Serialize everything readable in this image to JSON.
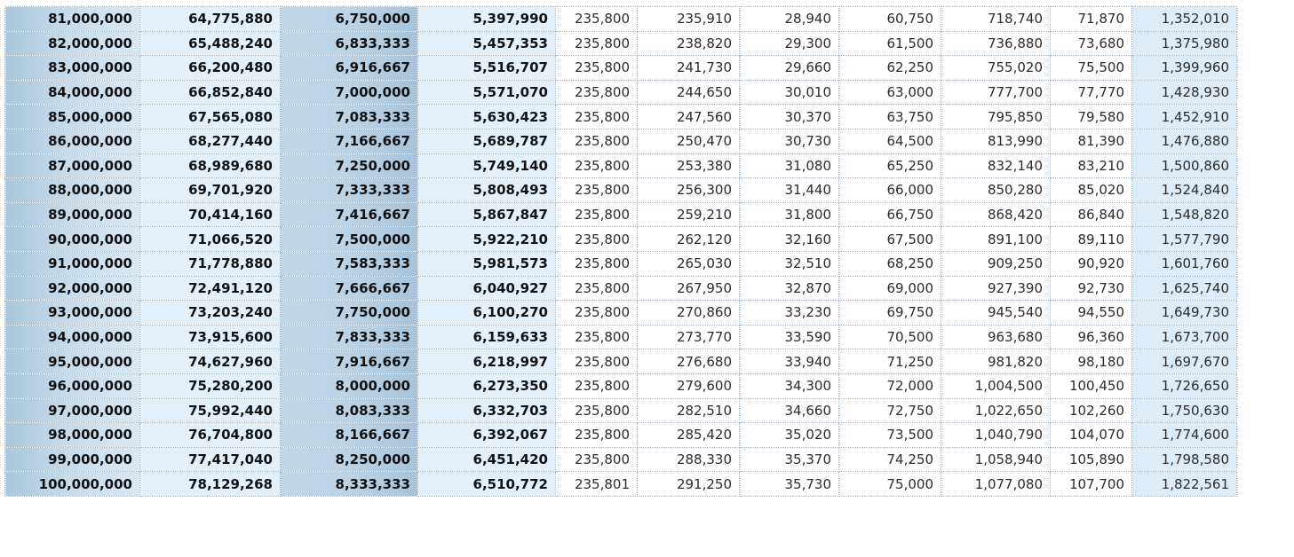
{
  "table": {
    "rows": [
      [
        "81,000,000",
        "64,775,880",
        "6,750,000",
        "5,397,990",
        "235,800",
        "235,910",
        "28,940",
        "60,750",
        "718,740",
        "71,870",
        "1,352,010"
      ],
      [
        "82,000,000",
        "65,488,240",
        "6,833,333",
        "5,457,353",
        "235,800",
        "238,820",
        "29,300",
        "61,500",
        "736,880",
        "73,680",
        "1,375,980"
      ],
      [
        "83,000,000",
        "66,200,480",
        "6,916,667",
        "5,516,707",
        "235,800",
        "241,730",
        "29,660",
        "62,250",
        "755,020",
        "75,500",
        "1,399,960"
      ],
      [
        "84,000,000",
        "66,852,840",
        "7,000,000",
        "5,571,070",
        "235,800",
        "244,650",
        "30,010",
        "63,000",
        "777,700",
        "77,770",
        "1,428,930"
      ],
      [
        "85,000,000",
        "67,565,080",
        "7,083,333",
        "5,630,423",
        "235,800",
        "247,560",
        "30,370",
        "63,750",
        "795,850",
        "79,580",
        "1,452,910"
      ],
      [
        "86,000,000",
        "68,277,440",
        "7,166,667",
        "5,689,787",
        "235,800",
        "250,470",
        "30,730",
        "64,500",
        "813,990",
        "81,390",
        "1,476,880"
      ],
      [
        "87,000,000",
        "68,989,680",
        "7,250,000",
        "5,749,140",
        "235,800",
        "253,380",
        "31,080",
        "65,250",
        "832,140",
        "83,210",
        "1,500,860"
      ],
      [
        "88,000,000",
        "69,701,920",
        "7,333,333",
        "5,808,493",
        "235,800",
        "256,300",
        "31,440",
        "66,000",
        "850,280",
        "85,020",
        "1,524,840"
      ],
      [
        "89,000,000",
        "70,414,160",
        "7,416,667",
        "5,867,847",
        "235,800",
        "259,210",
        "31,800",
        "66,750",
        "868,420",
        "86,840",
        "1,548,820"
      ],
      [
        "90,000,000",
        "71,066,520",
        "7,500,000",
        "5,922,210",
        "235,800",
        "262,120",
        "32,160",
        "67,500",
        "891,100",
        "89,110",
        "1,577,790"
      ],
      [
        "91,000,000",
        "71,778,880",
        "7,583,333",
        "5,981,573",
        "235,800",
        "265,030",
        "32,510",
        "68,250",
        "909,250",
        "90,920",
        "1,601,760"
      ],
      [
        "92,000,000",
        "72,491,120",
        "7,666,667",
        "6,040,927",
        "235,800",
        "267,950",
        "32,870",
        "69,000",
        "927,390",
        "92,730",
        "1,625,740"
      ],
      [
        "93,000,000",
        "73,203,240",
        "7,750,000",
        "6,100,270",
        "235,800",
        "270,860",
        "33,230",
        "69,750",
        "945,540",
        "94,550",
        "1,649,730"
      ],
      [
        "94,000,000",
        "73,915,600",
        "7,833,333",
        "6,159,633",
        "235,800",
        "273,770",
        "33,590",
        "70,500",
        "963,680",
        "96,360",
        "1,673,700"
      ],
      [
        "95,000,000",
        "74,627,960",
        "7,916,667",
        "6,218,997",
        "235,800",
        "276,680",
        "33,940",
        "71,250",
        "981,820",
        "98,180",
        "1,697,670"
      ],
      [
        "96,000,000",
        "75,280,200",
        "8,000,000",
        "6,273,350",
        "235,800",
        "279,600",
        "34,300",
        "72,000",
        "1,004,500",
        "100,450",
        "1,726,650"
      ],
      [
        "97,000,000",
        "75,992,440",
        "8,083,333",
        "6,332,703",
        "235,800",
        "282,510",
        "34,660",
        "72,750",
        "1,022,650",
        "102,260",
        "1,750,630"
      ],
      [
        "98,000,000",
        "76,704,800",
        "8,166,667",
        "6,392,067",
        "235,800",
        "285,420",
        "35,020",
        "73,500",
        "1,040,790",
        "104,070",
        "1,774,600"
      ],
      [
        "99,000,000",
        "77,417,040",
        "8,250,000",
        "6,451,420",
        "235,800",
        "288,330",
        "35,370",
        "74,250",
        "1,058,940",
        "105,890",
        "1,798,580"
      ],
      [
        "100,000,000",
        "78,129,268",
        "8,333,333",
        "6,510,772",
        "235,801",
        "291,250",
        "35,730",
        "75,000",
        "1,077,080",
        "107,700",
        "1,822,561"
      ]
    ]
  },
  "colors": {
    "col1_band": "#c6dbeb",
    "col2_band": "#e2f0fb",
    "col3_band": "#bcd3e6",
    "col4_band": "#e3f1fc",
    "last_col_band": "#dcedf9",
    "grid_line": "#a8b4c0"
  }
}
